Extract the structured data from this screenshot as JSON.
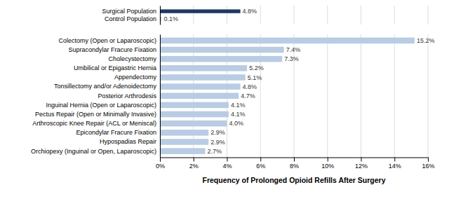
{
  "chart_data": [
    {
      "type": "bar",
      "orientation": "horizontal",
      "categories": [
        "Surgical Population",
        "Control Population"
      ],
      "values": [
        4.8,
        0.1
      ],
      "value_labels": [
        "4.8%",
        "0.1%"
      ],
      "colors": [
        "#1f3864",
        "#b8cce4"
      ],
      "xlim": [
        0,
        16
      ],
      "xticks": [
        0,
        2,
        4,
        6,
        8,
        10,
        12,
        14,
        16
      ],
      "grid": true,
      "data_labels": true,
      "tick_labels": "y"
    },
    {
      "type": "bar",
      "orientation": "horizontal",
      "categories": [
        "Colectomy (Open or Laparoscopic)",
        "Supracondylar Fracure Fixation",
        "Cholecystectomy",
        "Umbilical or Epigastric Hernia",
        "Appendectomy",
        "Tonsillectomy and/or Adenoidectomy",
        "Posterior Arthrodesis",
        "Inguinal Hernia (Open or Laparoscopic)",
        "Pectus Repair (Open or Minimally Invasive)",
        "Arthroscopic Knee Repair (ACL or Meniscal)",
        "Epicondylar Fracure Fixation",
        "Hypospadias Repair",
        "Orchiopexy (Inguinal or Open, Laparoscopic)"
      ],
      "values": [
        15.2,
        7.4,
        7.3,
        5.2,
        5.1,
        4.8,
        4.7,
        4.1,
        4.1,
        4.0,
        2.9,
        2.9,
        2.7
      ],
      "value_labels": [
        "15.2%",
        "7.4%",
        "7.3%",
        "5.2%",
        "5.1%",
        "4.8%",
        "4.7%",
        "4.1%",
        "4.1%",
        "4.0%",
        "2.9%",
        "2.9%",
        "2.7%"
      ],
      "color": "#b8cce4",
      "xlabel": "Frequency of Prolonged Opioid Refills After Surgery",
      "xlim": [
        0,
        16
      ],
      "xticks": [
        {
          "value": 0,
          "label": "0%"
        },
        {
          "value": 2,
          "label": "2%"
        },
        {
          "value": 4,
          "label": "4%"
        },
        {
          "value": 6,
          "label": "6%"
        },
        {
          "value": 8,
          "label": "8%"
        },
        {
          "value": 10,
          "label": "10%"
        },
        {
          "value": 12,
          "label": "12%"
        },
        {
          "value": 14,
          "label": "14%"
        },
        {
          "value": 16,
          "label": "16%"
        }
      ],
      "grid": true,
      "data_labels": true
    }
  ]
}
